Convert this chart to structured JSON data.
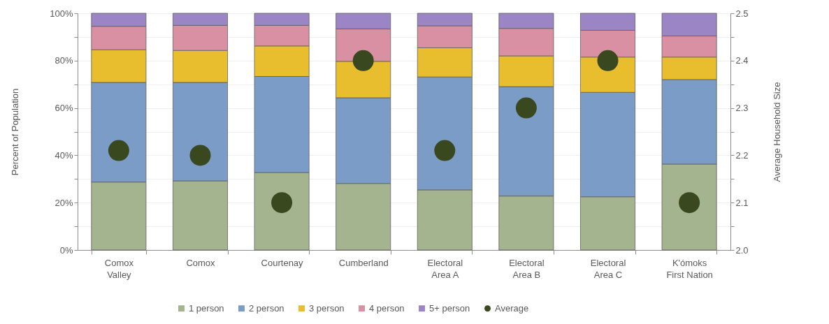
{
  "chart_data": {
    "type": "bar",
    "stacked": true,
    "categories": [
      "Comox Valley",
      "Comox",
      "Courtenay",
      "Cumberland",
      "Electoral Area A",
      "Electoral Area B",
      "Electoral Area C",
      "K'ómoks First Nation"
    ],
    "ylabel": "Percent of Population",
    "y2label": "Average Household Size",
    "ylim": [
      0,
      100
    ],
    "yticks": [
      {
        "value": 0,
        "label": "0%"
      },
      {
        "value": 10,
        "label": null
      },
      {
        "value": 20,
        "label": "20%"
      },
      {
        "value": 30,
        "label": null
      },
      {
        "value": 40,
        "label": "40%"
      },
      {
        "value": 50,
        "label": null
      },
      {
        "value": 60,
        "label": "60%"
      },
      {
        "value": 70,
        "label": null
      },
      {
        "value": 80,
        "label": "80%"
      },
      {
        "value": 90,
        "label": null
      },
      {
        "value": 100,
        "label": "100%"
      }
    ],
    "y2lim": [
      2.0,
      2.5
    ],
    "y2ticks": [
      {
        "value": 2.0,
        "label": "2.0"
      },
      {
        "value": 2.05,
        "label": null
      },
      2.1,
      {
        "value": 2.15,
        "label": null
      },
      2.2,
      {
        "value": 2.25,
        "label": null
      },
      2.3,
      {
        "value": 2.35,
        "label": null
      },
      2.4,
      {
        "value": 2.45,
        "label": null
      },
      2.5
    ],
    "grid": "y",
    "legend": "bottom",
    "series": [
      {
        "name": "1 person",
        "color": "#a3b48e",
        "values": [
          28.7,
          29.2,
          32.7,
          28.1,
          25.4,
          22.8,
          22.5,
          36.3
        ]
      },
      {
        "name": "2 person",
        "color": "#7b9cc6",
        "values": [
          42.1,
          41.6,
          40.6,
          36.2,
          47.7,
          46.2,
          44.1,
          35.7
        ]
      },
      {
        "name": "3 person",
        "color": "#e8bd2e",
        "values": [
          13.8,
          13.5,
          12.9,
          15.4,
          12.3,
          13.0,
          14.9,
          9.5
        ]
      },
      {
        "name": "4 person",
        "color": "#d990a2",
        "values": [
          9.9,
          10.6,
          8.7,
          13.7,
          9.3,
          11.6,
          11.3,
          8.9
        ]
      },
      {
        "name": "5+ person",
        "color": "#9b85c4",
        "values": [
          5.5,
          5.1,
          5.1,
          6.6,
          5.3,
          6.4,
          7.2,
          9.6
        ]
      },
      {
        "name": "Average",
        "type": "scatter",
        "axis": "y2",
        "marker": "circle",
        "color": "#3a4820",
        "values": [
          2.21,
          2.2,
          2.1,
          2.4,
          2.21,
          2.3,
          2.4,
          2.1
        ]
      }
    ]
  }
}
